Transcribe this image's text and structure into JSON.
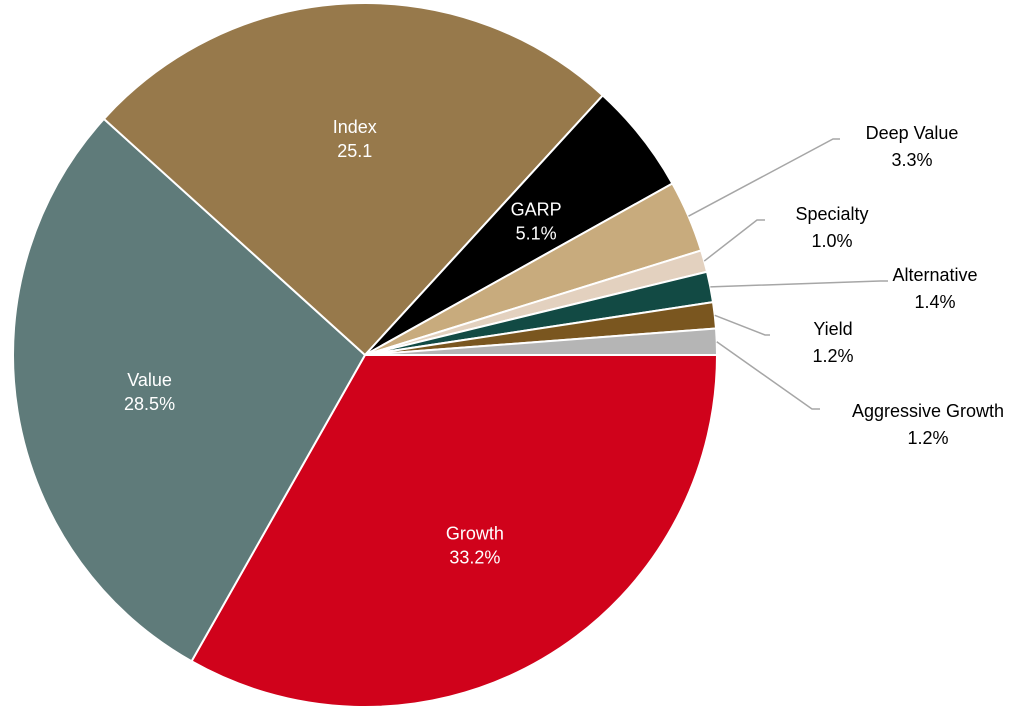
{
  "chart_data": {
    "type": "pie",
    "title": "",
    "slices": [
      {
        "label": "Growth",
        "value": 33.2,
        "value_text": "33.2%",
        "color": "#d0021b",
        "label_color": "#ffffff",
        "label_style": "inside"
      },
      {
        "label": "Value",
        "value": 28.5,
        "value_text": "28.5%",
        "color": "#5f7b7a",
        "label_color": "#ffffff",
        "label_style": "inside"
      },
      {
        "label": "Index",
        "value": 25.1,
        "value_text": "25.1",
        "color": "#97794b",
        "label_color": "#ffffff",
        "label_style": "inside"
      },
      {
        "label": "GARP",
        "value": 5.1,
        "value_text": "5.1%",
        "color": "#000000",
        "label_color": "#ffffff",
        "label_style": "inside"
      },
      {
        "label": "Deep Value",
        "value": 3.3,
        "value_text": "3.3%",
        "color": "#c8ab7d",
        "label_color": "#000000",
        "label_style": "callout"
      },
      {
        "label": "Specialty",
        "value": 1.0,
        "value_text": "1.0%",
        "color": "#e3d1bf",
        "label_color": "#000000",
        "label_style": "callout"
      },
      {
        "label": "Alternative",
        "value": 1.4,
        "value_text": "1.4%",
        "color": "#124a44",
        "label_color": "#000000",
        "label_style": "callout"
      },
      {
        "label": "Yield",
        "value": 1.2,
        "value_text": "1.2%",
        "color": "#7a561f",
        "label_color": "#000000",
        "label_style": "callout"
      },
      {
        "label": "Aggressive Growth",
        "value": 1.2,
        "value_text": "1.2%",
        "color": "#b5b5b5",
        "label_color": "#000000",
        "label_style": "callout"
      }
    ],
    "legend": "none",
    "leader_line_color": "#a6a6a6"
  }
}
